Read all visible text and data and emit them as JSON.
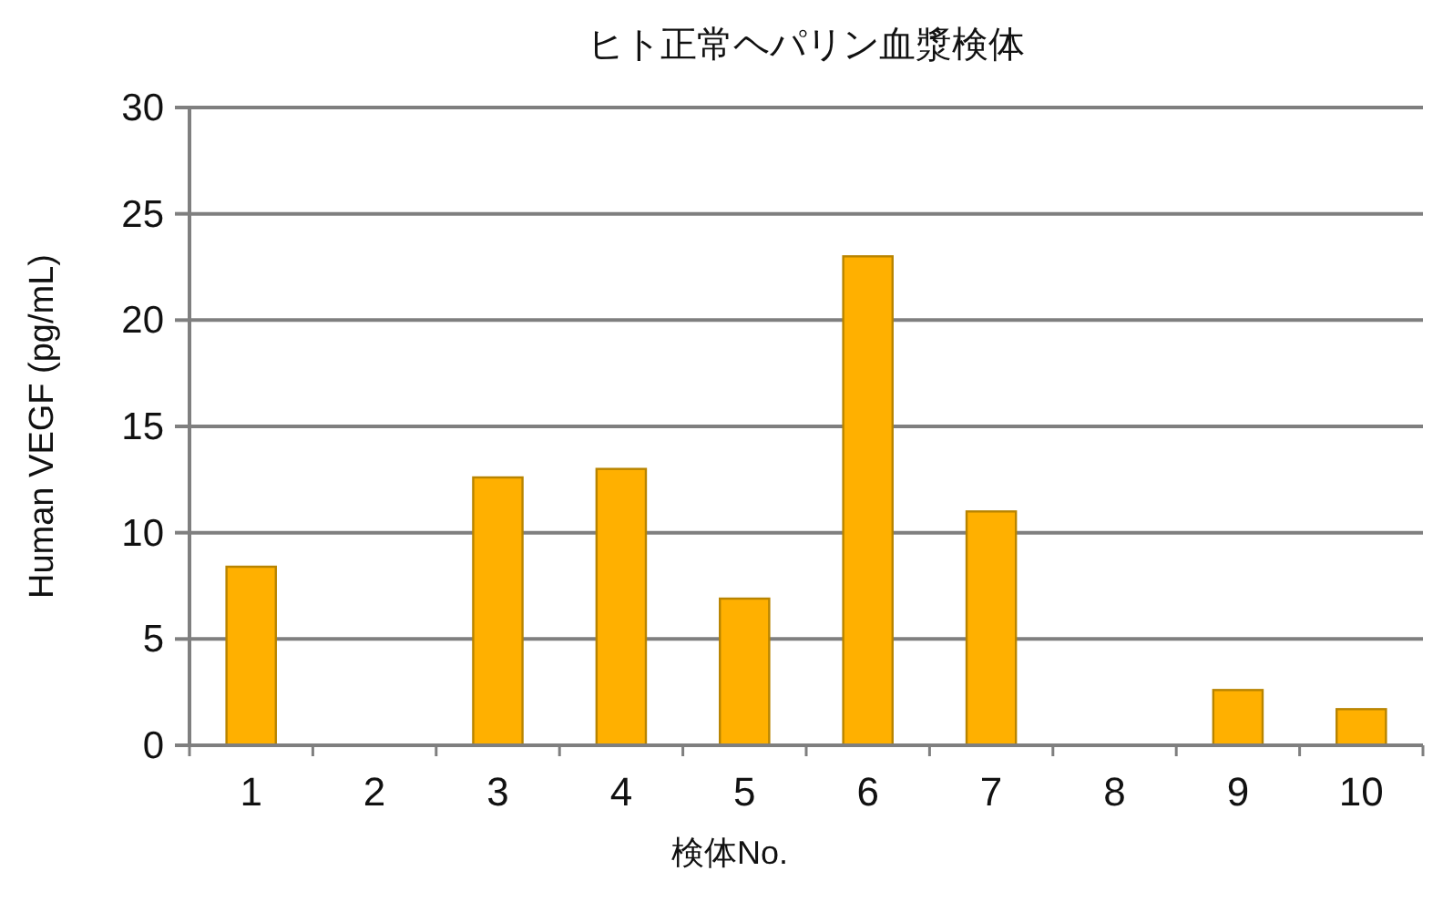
{
  "chart_data": {
    "type": "bar",
    "title": "ヒト正常ヘパリン血漿検体",
    "xlabel": "検体No.",
    "ylabel": "Human VEGF (pg/mL)",
    "categories": [
      "1",
      "2",
      "3",
      "4",
      "5",
      "6",
      "7",
      "8",
      "9",
      "10"
    ],
    "values": [
      8.4,
      0,
      12.6,
      13.0,
      6.9,
      23.0,
      11.0,
      0,
      2.6,
      1.7
    ],
    "color": "#ffb000",
    "ylim": [
      0,
      30
    ],
    "yticks": [
      0,
      5,
      10,
      15,
      20,
      25,
      30
    ],
    "grid": "y"
  }
}
